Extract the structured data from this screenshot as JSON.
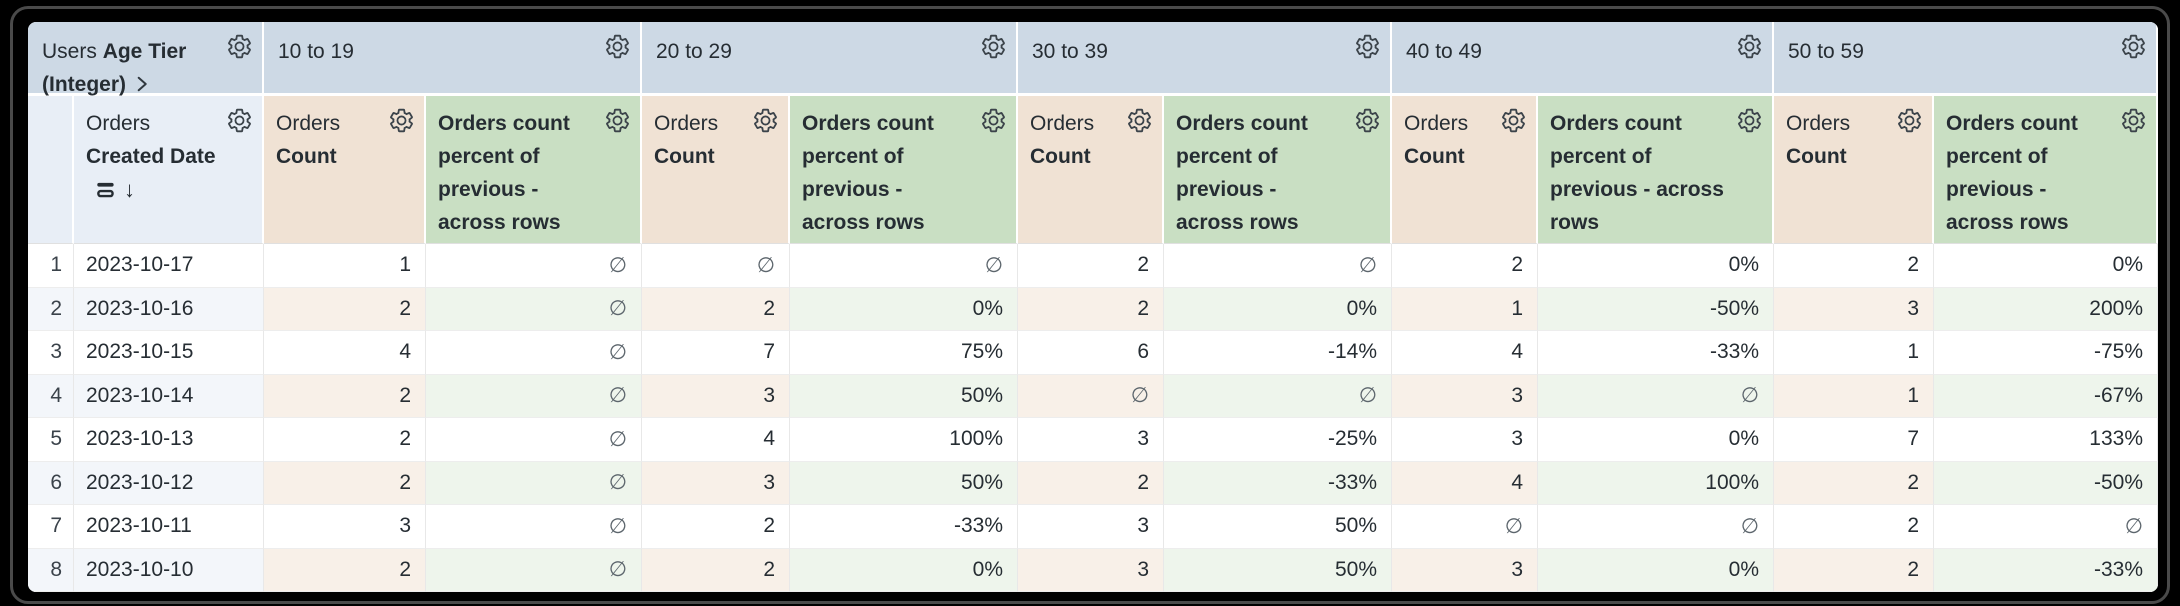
{
  "header": {
    "corner": {
      "view": "Users",
      "field": "Age Tier",
      "suffix": "(Integer)"
    },
    "pivot_values": [
      "10 to 19",
      "20 to 29",
      "30 to 39",
      "40 to 49",
      "50 to 59"
    ],
    "row_dim": {
      "view": "Orders",
      "field": "Created Date"
    },
    "measure": {
      "view": "Orders",
      "field": "Count"
    },
    "calc_label": "Orders count percent of previous - across rows",
    "sort": {
      "direction": "descending",
      "arrow": "↓"
    }
  },
  "body": {
    "null_symbol": "∅",
    "rows": [
      {
        "n": "1",
        "date": "2023-10-17",
        "values": [
          "1",
          "∅",
          "∅",
          "∅",
          "2",
          "∅",
          "2",
          "0%",
          "2",
          "0%"
        ]
      },
      {
        "n": "2",
        "date": "2023-10-16",
        "values": [
          "2",
          "∅",
          "2",
          "0%",
          "2",
          "0%",
          "1",
          "-50%",
          "3",
          "200%"
        ]
      },
      {
        "n": "3",
        "date": "2023-10-15",
        "values": [
          "4",
          "∅",
          "7",
          "75%",
          "6",
          "-14%",
          "4",
          "-33%",
          "1",
          "-75%"
        ]
      },
      {
        "n": "4",
        "date": "2023-10-14",
        "values": [
          "2",
          "∅",
          "3",
          "50%",
          "∅",
          "∅",
          "3",
          "∅",
          "1",
          "-67%"
        ]
      },
      {
        "n": "5",
        "date": "2023-10-13",
        "values": [
          "2",
          "∅",
          "4",
          "100%",
          "3",
          "-25%",
          "3",
          "0%",
          "7",
          "133%"
        ]
      },
      {
        "n": "6",
        "date": "2023-10-12",
        "values": [
          "2",
          "∅",
          "3",
          "50%",
          "2",
          "-33%",
          "4",
          "100%",
          "2",
          "-50%"
        ]
      },
      {
        "n": "7",
        "date": "2023-10-11",
        "values": [
          "3",
          "∅",
          "2",
          "-33%",
          "3",
          "50%",
          "∅",
          "∅",
          "2",
          "∅"
        ]
      },
      {
        "n": "8",
        "date": "2023-10-10",
        "values": [
          "2",
          "∅",
          "2",
          "0%",
          "3",
          "50%",
          "3",
          "0%",
          "2",
          "-33%"
        ]
      }
    ]
  },
  "icons": {
    "gear": "gear-icon",
    "sort_desc": "sort-desc-icon",
    "subtotal": "subtotal-icon",
    "chevron": "chevron-right-icon"
  },
  "colors": {
    "pivot_header_bg": "#cdd9e5",
    "dim_header_bg": "#e8eef6",
    "measure_header_bg": "#f0e2d4",
    "calc_header_bg": "#c9dfc3",
    "even_dim_bg": "#f3f6fa",
    "even_measure_bg": "#f8f0e8",
    "even_calc_bg": "#eef5ec",
    "text": "#262d33"
  }
}
